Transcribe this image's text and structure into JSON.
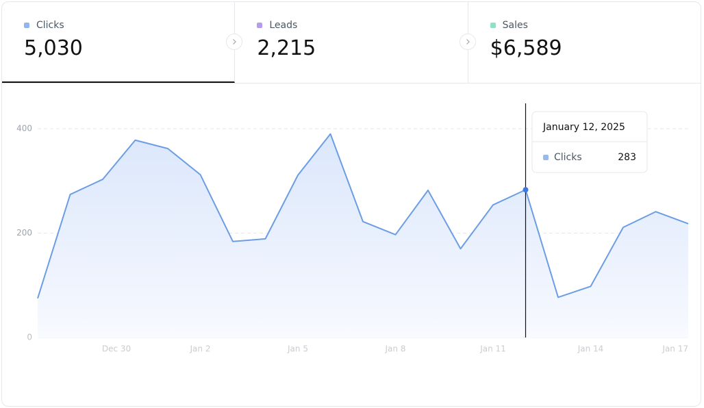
{
  "tabs": [
    {
      "label": "Clicks",
      "value": "5,030",
      "color": "#93b4ec"
    },
    {
      "label": "Leads",
      "value": "2,215",
      "color": "#b49cf0"
    },
    {
      "label": "Sales",
      "value": "$6,589",
      "color": "#8fe0c8"
    }
  ],
  "active_tab": 0,
  "chart_data": {
    "type": "area",
    "categories": [
      null,
      null,
      "Dec 30",
      null,
      null,
      "Jan 2",
      null,
      null,
      "Jan 5",
      null,
      null,
      "Jan 8",
      null,
      null,
      "Jan 11",
      null,
      null,
      "Jan 14",
      null,
      null,
      "Jan 17"
    ],
    "series": [
      {
        "name": "Clicks",
        "color": "#6b9de4",
        "values": [
          75,
          274,
          303,
          378,
          362,
          312,
          184,
          189,
          311,
          390,
          222,
          197,
          282,
          170,
          254,
          283,
          77,
          98,
          211,
          241,
          218
        ]
      }
    ],
    "ylim": [
      0,
      400
    ],
    "yticks": [
      0,
      200,
      400
    ],
    "grid": true,
    "tooltip": {
      "title": "January 12, 2025",
      "index": 15
    }
  }
}
